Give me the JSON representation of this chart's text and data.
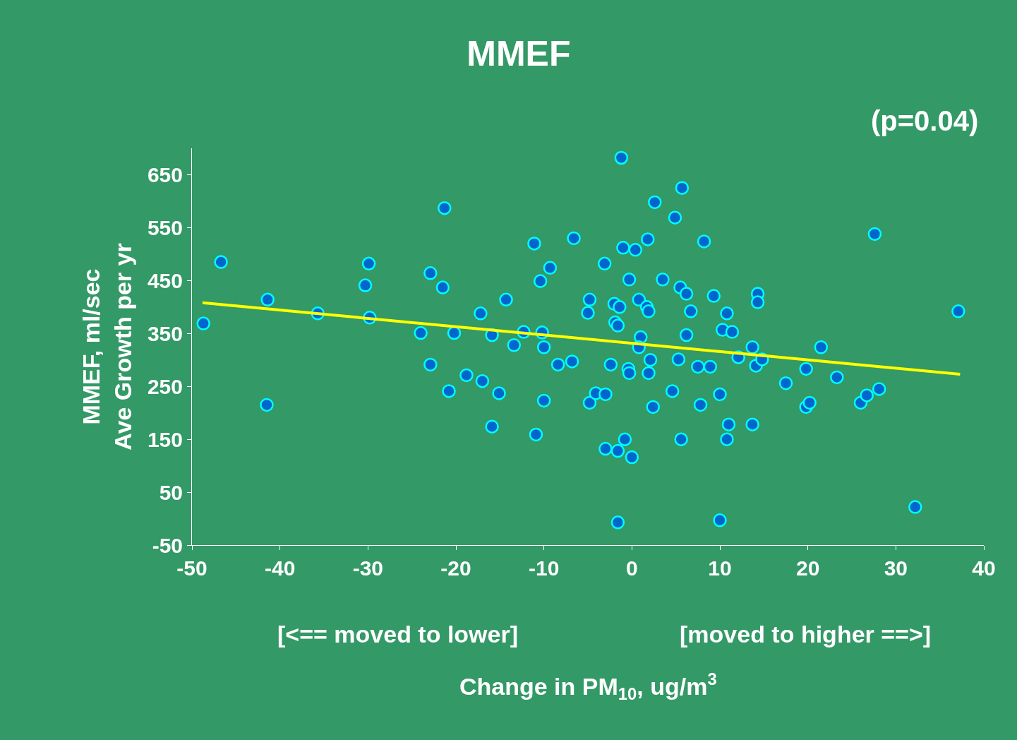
{
  "chart_data": {
    "type": "scatter",
    "title": "MMEF",
    "xlabel": "Change in PM$_{10}$, ug/m$^{3}$",
    "ylabel": "MMEF, ml/sec\nAve Growth per yr",
    "annotations": [
      "(p=0.04)",
      "[<== moved to lower]",
      "[moved to higher ==>]"
    ],
    "xlim": [
      -50,
      40
    ],
    "xticks": [
      -50,
      -40,
      -30,
      -20,
      -10,
      0,
      10,
      20,
      30,
      40
    ],
    "ylim": [
      -50,
      700
    ],
    "yticks": [
      -50,
      50,
      150,
      250,
      350,
      450,
      550,
      650
    ],
    "grid": false,
    "marker": "circle",
    "series": [
      {
        "color": "#0066cc",
        "x": [
          -48.7,
          -46.7,
          -41.4,
          -41.5,
          -35.7,
          -30.3,
          -29.9,
          -29.8,
          -24.0,
          -22.9,
          -22.9,
          -21.5,
          -21.3,
          -20.8,
          -20.2,
          -18.8,
          -17.2,
          -17.0,
          -15.9,
          -15.9,
          -15.1,
          -14.3,
          -13.4,
          -12.3,
          -11.1,
          -10.9,
          -10.4,
          -10.2,
          -10.0,
          -10.0,
          -9.3,
          -8.4,
          -6.8,
          -6.6,
          -5.0,
          -4.8,
          -4.8,
          -4.1,
          -3.1,
          -3.0,
          -3.0,
          -2.4,
          -2.0,
          -1.9,
          -1.6,
          -1.6,
          -1.6,
          -1.4,
          -1.2,
          -1.0,
          -0.8,
          -0.4,
          -0.3,
          -0.3,
          0,
          0.4,
          0.8,
          1.0,
          0.8,
          1.7,
          1.9,
          1.8,
          2.1,
          1.9,
          2.4,
          2.6,
          3.5,
          4.6,
          4.9,
          5.3,
          5.5,
          5.6,
          5.7,
          6.2,
          6.2,
          6.7,
          7.5,
          7.8,
          8.2,
          8.9,
          9.3,
          10.0,
          10.0,
          10.3,
          10.8,
          10.8,
          11.0,
          11.4,
          12.1,
          13.7,
          13.7,
          14.1,
          14.3,
          14.3,
          14.8,
          17.5,
          19.8,
          19.8,
          20.2,
          21.5,
          23.3,
          26.0,
          26.7,
          28.1,
          27.6,
          32.2,
          37.1
        ],
        "values": [
          369,
          485,
          414,
          215,
          388,
          441,
          482,
          380,
          351,
          464,
          291,
          437,
          587,
          241,
          351,
          271,
          388,
          260,
          347,
          174,
          237,
          414,
          328,
          353,
          520,
          159,
          449,
          352,
          324,
          223,
          474,
          291,
          297,
          530,
          389,
          414,
          219,
          237,
          482,
          235,
          132,
          291,
          406,
          371,
          365,
          128,
          -7,
          400,
          682,
          512,
          150,
          283,
          275,
          452,
          116,
          508,
          414,
          343,
          324,
          400,
          392,
          528,
          300,
          275,
          211,
          598,
          452,
          241,
          569,
          301,
          437,
          150,
          625,
          425,
          347,
          392,
          287,
          215,
          524,
          287,
          421,
          -3,
          235,
          357,
          388,
          150,
          178,
          353,
          305,
          324,
          178,
          289,
          425,
          409,
          301,
          256,
          283,
          211,
          219,
          324,
          267,
          219,
          233,
          245,
          538,
          22,
          392
        ]
      },
      {
        "type": "line",
        "color": "#ffff00",
        "marker": "none",
        "x": [
          -48.8,
          37.3
        ],
        "values": [
          408,
          273
        ]
      }
    ]
  }
}
